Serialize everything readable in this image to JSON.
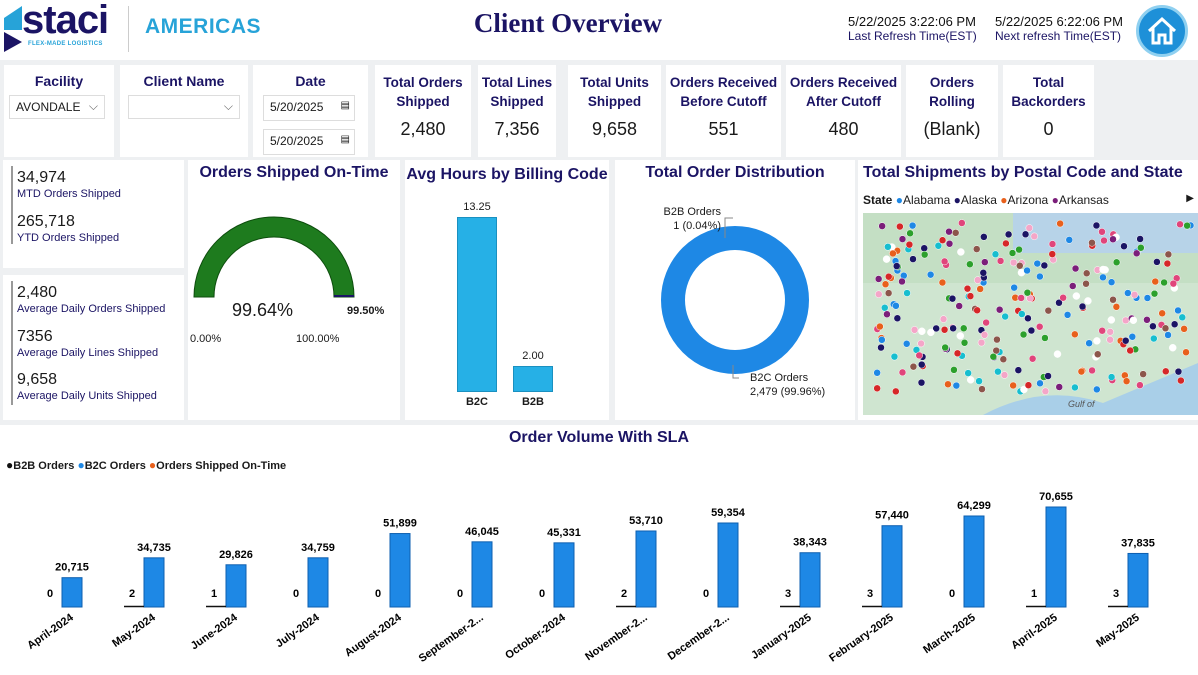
{
  "header": {
    "logo": "staci",
    "logo_tagline": "FLEX-MADE LOGISTICS",
    "region": "AMERICAS",
    "title": "Client Overview",
    "last_refresh": "5/22/2025 3:22:06 PM",
    "last_refresh_label": "Last Refresh Time(EST)",
    "next_refresh": "5/22/2025 6:22:06 PM",
    "next_refresh_label": "Next refresh Time(EST)",
    "home_icon": "home-icon"
  },
  "filters": {
    "facility": {
      "label": "Facility",
      "value": "AVONDALE"
    },
    "client": {
      "label": "Client Name",
      "value": ""
    },
    "date": {
      "label": "Date",
      "start": "5/20/2025",
      "end": "5/20/2025"
    }
  },
  "kpis": [
    {
      "label": "Total Orders Shipped",
      "value": "2,480"
    },
    {
      "label": "Total Lines Shipped",
      "value": "7,356"
    },
    {
      "label": "Total Units Shipped",
      "value": "9,658"
    },
    {
      "label": "Orders Received Before Cutoff",
      "value": "551"
    },
    {
      "label": "Orders Received After Cutoff",
      "value": "480"
    },
    {
      "label": "Orders Rolling",
      "value": "(Blank)"
    },
    {
      "label": "Total Backorders",
      "value": "0"
    }
  ],
  "mtd": {
    "value": "34,974",
    "label": "MTD Orders Shipped"
  },
  "ytd": {
    "value": "265,718",
    "label": "YTD Orders Shipped"
  },
  "daily": [
    {
      "value": "2,480",
      "label": "Average Daily Orders Shipped"
    },
    {
      "value": "7356",
      "label": "Average Daily Lines Shipped"
    },
    {
      "value": "9,658",
      "label": "Average Daily Units Shipped"
    }
  ],
  "gauge": {
    "title": "Orders Shipped On-Time",
    "value": "99.64%",
    "target": "99.50%",
    "min": "0.00%",
    "max": "100.00%",
    "fraction": 0.9964,
    "color": "#1e7b1e"
  },
  "billing": {
    "title": "Avg Hours by Billing Code",
    "bars": [
      {
        "label": "B2C",
        "value": 13.25,
        "text": "13.25"
      },
      {
        "label": "B2B",
        "value": 2.0,
        "text": "2.00"
      }
    ],
    "color": "#26b0e6"
  },
  "distribution": {
    "title": "Total Order Distribution",
    "b2b_label": "B2B Orders",
    "b2b_value": "1 (0.04%)",
    "b2c_label": "B2C Orders",
    "b2c_value": "2,479 (99.96%)",
    "color": "#1e88e5"
  },
  "map": {
    "title": "Total Shipments by Postal Code and State",
    "legend_label": "State",
    "states": [
      {
        "name": "Alabama",
        "color": "#1e88e5"
      },
      {
        "name": "Alaska",
        "color": "#1b1464"
      },
      {
        "name": "Arizona",
        "color": "#e8601c"
      },
      {
        "name": "Arkansas",
        "color": "#7b1e7a"
      }
    ],
    "gulf_label": "Gulf of"
  },
  "chart_data": {
    "type": "bar",
    "title": "Order Volume With SLA",
    "legend": [
      {
        "name": "B2B Orders",
        "color": "#111111"
      },
      {
        "name": "B2C Orders",
        "color": "#1e88e5"
      },
      {
        "name": "Orders Shipped On-Time",
        "color": "#e8601c"
      }
    ],
    "categories": [
      "April-2024",
      "May-2024",
      "June-2024",
      "July-2024",
      "August-2024",
      "September-2...",
      "October-2024",
      "November-2...",
      "December-2...",
      "January-2025",
      "February-2025",
      "March-2025",
      "April-2025",
      "May-2025"
    ],
    "series": [
      {
        "name": "B2B Orders",
        "values": [
          0,
          2,
          1,
          0,
          0,
          0,
          0,
          2,
          0,
          3,
          3,
          0,
          1,
          3
        ],
        "labels": [
          "0",
          "2",
          "1",
          "0",
          "0",
          "0",
          "0",
          "2",
          "0",
          "3",
          "3",
          "0",
          "1",
          "3"
        ]
      },
      {
        "name": "B2C Orders",
        "values": [
          20715,
          34735,
          29826,
          34759,
          51899,
          46045,
          45331,
          53710,
          59354,
          38343,
          57440,
          64299,
          70655,
          37835
        ],
        "labels": [
          "20,715",
          "34,735",
          "29,826",
          "34,759",
          "51,899",
          "46,045",
          "45,331",
          "53,710",
          "59,354",
          "38,343",
          "57,440",
          "64,299",
          "70,655",
          "37,835"
        ]
      }
    ]
  }
}
